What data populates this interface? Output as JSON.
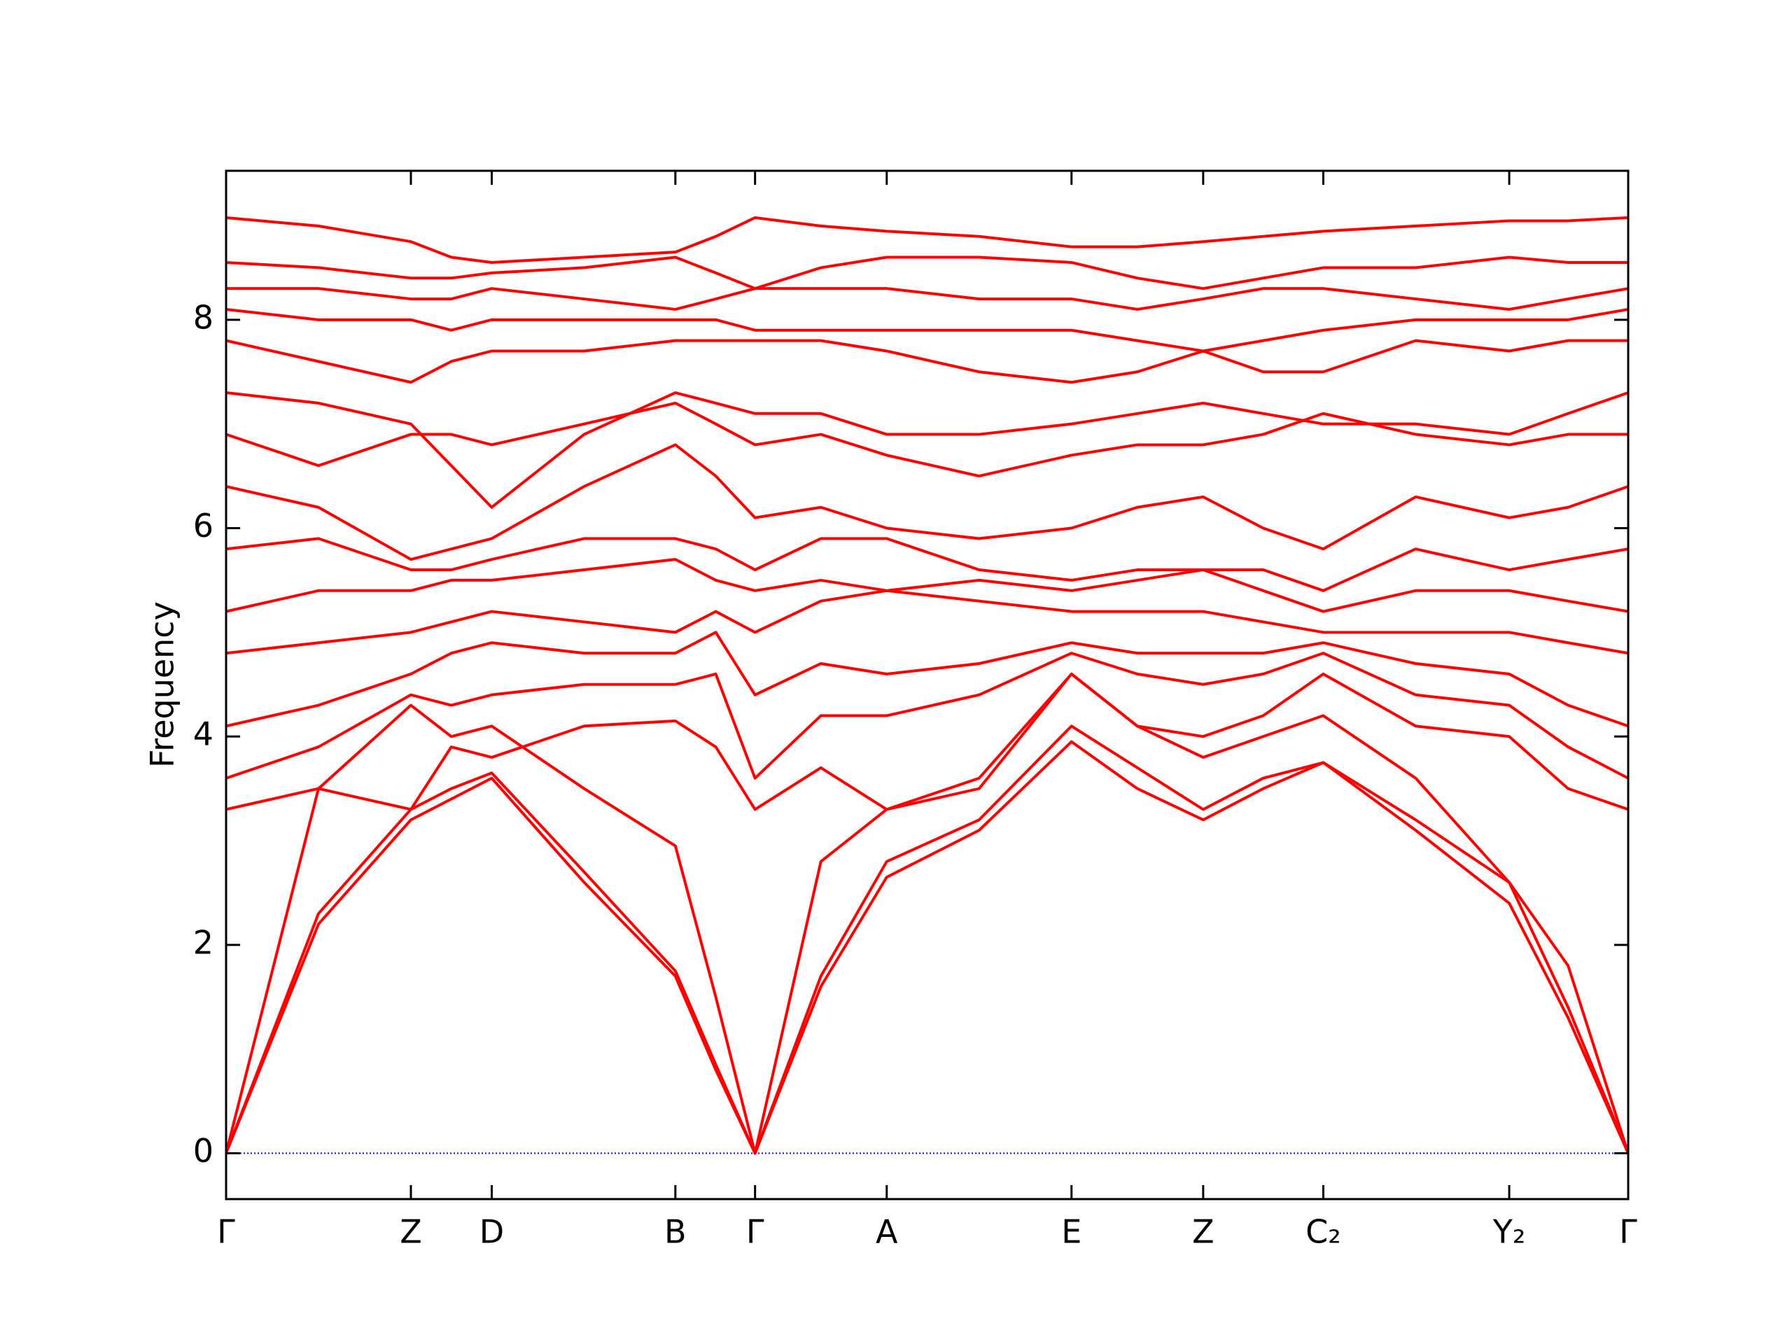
{
  "chart_data": {
    "type": "line",
    "ylabel": "Frequency",
    "color": "#ff0000",
    "zero_line": true,
    "zero_line_color": "#0000ff",
    "xlim": [
      0,
      12.14
    ],
    "ylim": [
      -0.44,
      9.43
    ],
    "xticks": [
      {
        "value": 0,
        "label": "Γ"
      },
      {
        "value": 1.6,
        "label": "Z"
      },
      {
        "value": 2.3,
        "label": "D"
      },
      {
        "value": 3.89,
        "label": "B"
      },
      {
        "value": 4.58,
        "label": "Γ"
      },
      {
        "value": 5.72,
        "label": "A"
      },
      {
        "value": 7.32,
        "label": "E"
      },
      {
        "value": 8.46,
        "label": "Z"
      },
      {
        "value": 9.5,
        "label": "C₂"
      },
      {
        "value": 11.11,
        "label": "Y₂"
      },
      {
        "value": 12.14,
        "label": "Γ"
      }
    ],
    "yticks": [
      0,
      2,
      4,
      6,
      8
    ],
    "x": [
      0,
      0.8,
      1.6,
      1.95,
      2.3,
      3.1,
      3.89,
      4.24,
      4.58,
      5.15,
      5.72,
      6.52,
      7.32,
      7.89,
      8.46,
      8.98,
      9.5,
      10.3,
      11.11,
      11.62,
      12.14
    ],
    "series": [
      {
        "values": [
          0,
          2.2,
          3.2,
          3.4,
          3.6,
          2.6,
          1.7,
          0.8,
          0,
          1.6,
          2.65,
          3.1,
          3.95,
          3.5,
          3.2,
          3.5,
          3.75,
          3.1,
          2.4,
          1.3,
          0
        ]
      },
      {
        "values": [
          0,
          2.3,
          3.3,
          3.5,
          3.65,
          2.7,
          1.75,
          0.85,
          0,
          1.7,
          2.8,
          3.2,
          4.1,
          3.7,
          3.3,
          3.6,
          3.75,
          3.2,
          2.6,
          1.4,
          0
        ]
      },
      {
        "values": [
          0,
          3.5,
          4.3,
          4.0,
          4.1,
          3.5,
          2.95,
          1.5,
          0,
          2.8,
          3.3,
          3.6,
          4.6,
          4.1,
          3.8,
          4.0,
          4.2,
          3.6,
          2.6,
          1.8,
          0
        ]
      },
      {
        "values": [
          3.3,
          3.5,
          3.3,
          3.9,
          3.8,
          4.1,
          4.15,
          3.9,
          3.3,
          3.7,
          3.3,
          3.5,
          4.6,
          4.1,
          4.0,
          4.2,
          4.6,
          4.1,
          4.0,
          3.5,
          3.3
        ]
      },
      {
        "values": [
          3.6,
          3.9,
          4.4,
          4.3,
          4.4,
          4.5,
          4.5,
          4.6,
          3.6,
          4.2,
          4.2,
          4.4,
          4.8,
          4.6,
          4.5,
          4.6,
          4.8,
          4.4,
          4.3,
          3.9,
          3.6
        ]
      },
      {
        "values": [
          4.1,
          4.3,
          4.6,
          4.8,
          4.9,
          4.8,
          4.8,
          5.0,
          4.4,
          4.7,
          4.6,
          4.7,
          4.9,
          4.8,
          4.8,
          4.8,
          4.9,
          4.7,
          4.6,
          4.3,
          4.1
        ]
      },
      {
        "values": [
          4.8,
          4.9,
          5.0,
          5.1,
          5.2,
          5.1,
          5.0,
          5.2,
          5.0,
          5.3,
          5.4,
          5.3,
          5.2,
          5.2,
          5.2,
          5.1,
          5.0,
          5.0,
          5.0,
          4.9,
          4.8
        ]
      },
      {
        "values": [
          5.2,
          5.4,
          5.4,
          5.5,
          5.5,
          5.6,
          5.7,
          5.5,
          5.4,
          5.5,
          5.4,
          5.5,
          5.4,
          5.5,
          5.6,
          5.4,
          5.2,
          5.4,
          5.4,
          5.3,
          5.2
        ]
      },
      {
        "values": [
          5.8,
          5.9,
          5.6,
          5.6,
          5.7,
          5.9,
          5.9,
          5.8,
          5.6,
          5.9,
          5.9,
          5.6,
          5.5,
          5.6,
          5.6,
          5.6,
          5.4,
          5.8,
          5.6,
          5.7,
          5.8
        ]
      },
      {
        "values": [
          6.4,
          6.2,
          5.7,
          5.8,
          5.9,
          6.4,
          6.8,
          6.5,
          6.1,
          6.2,
          6.0,
          5.9,
          6.0,
          6.2,
          6.3,
          6.0,
          5.8,
          6.3,
          6.1,
          6.2,
          6.4
        ]
      },
      {
        "values": [
          6.9,
          6.6,
          6.9,
          6.9,
          6.8,
          7.0,
          7.2,
          7.0,
          6.8,
          6.9,
          6.7,
          6.5,
          6.7,
          6.8,
          6.8,
          6.9,
          7.1,
          6.9,
          6.8,
          6.9,
          6.9
        ]
      },
      {
        "values": [
          7.3,
          7.2,
          7.0,
          6.6,
          6.2,
          6.9,
          7.3,
          7.2,
          7.1,
          7.1,
          6.9,
          6.9,
          7.0,
          7.1,
          7.2,
          7.1,
          7.0,
          7.0,
          6.9,
          7.1,
          7.3
        ]
      },
      {
        "values": [
          7.8,
          7.6,
          7.4,
          7.6,
          7.7,
          7.7,
          7.8,
          7.8,
          7.8,
          7.8,
          7.7,
          7.5,
          7.4,
          7.5,
          7.7,
          7.5,
          7.5,
          7.8,
          7.7,
          7.8,
          7.8
        ]
      },
      {
        "values": [
          8.1,
          8.0,
          8.0,
          7.9,
          8.0,
          8.0,
          8.0,
          8.0,
          7.9,
          7.9,
          7.9,
          7.9,
          7.9,
          7.8,
          7.7,
          7.8,
          7.9,
          8.0,
          8.0,
          8.0,
          8.1
        ]
      },
      {
        "values": [
          8.3,
          8.3,
          8.2,
          8.2,
          8.3,
          8.2,
          8.1,
          8.2,
          8.3,
          8.3,
          8.3,
          8.2,
          8.2,
          8.1,
          8.2,
          8.3,
          8.3,
          8.2,
          8.1,
          8.2,
          8.3
        ]
      },
      {
        "values": [
          8.55,
          8.5,
          8.4,
          8.4,
          8.45,
          8.5,
          8.6,
          8.45,
          8.3,
          8.5,
          8.6,
          8.6,
          8.55,
          8.4,
          8.3,
          8.4,
          8.5,
          8.5,
          8.6,
          8.55,
          8.55
        ]
      },
      {
        "values": [
          8.98,
          8.9,
          8.75,
          8.6,
          8.55,
          8.6,
          8.65,
          8.8,
          8.98,
          8.9,
          8.85,
          8.8,
          8.7,
          8.7,
          8.75,
          8.8,
          8.85,
          8.9,
          8.95,
          8.95,
          8.98
        ]
      }
    ]
  }
}
